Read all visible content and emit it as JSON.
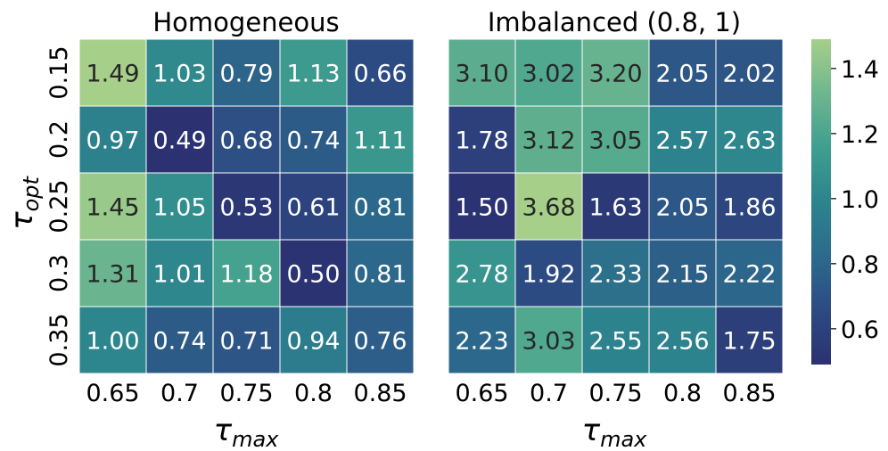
{
  "chart_data": {
    "type": "heatmap",
    "colormap": "crest",
    "colorbar": {
      "min": 0.49,
      "max": 1.49,
      "ticks": [
        "0.6",
        "0.8",
        "1.0",
        "1.2",
        "1.4"
      ],
      "tick_values": [
        0.6,
        0.8,
        1.0,
        1.2,
        1.4
      ]
    },
    "panels": [
      {
        "title": "Homogeneous",
        "xlabel_symbol": "τ",
        "xlabel_sub": "max",
        "ylabel_symbol": "τ",
        "ylabel_sub": "opt",
        "x_categories": [
          "0.65",
          "0.7",
          "0.75",
          "0.8",
          "0.85"
        ],
        "y_categories": [
          "0.15",
          "0.2",
          "0.25",
          "0.3",
          "0.35"
        ],
        "values": [
          [
            1.49,
            1.03,
            0.79,
            1.13,
            0.66
          ],
          [
            0.97,
            0.49,
            0.68,
            0.74,
            1.11
          ],
          [
            1.45,
            1.05,
            0.53,
            0.61,
            0.81
          ],
          [
            1.31,
            1.01,
            1.18,
            0.5,
            0.81
          ],
          [
            1.0,
            0.74,
            0.71,
            0.94,
            0.76
          ]
        ],
        "labels": [
          [
            "1.49",
            "1.03",
            "0.79",
            "1.13",
            "0.66"
          ],
          [
            "0.97",
            "0.49",
            "0.68",
            "0.74",
            "1.11"
          ],
          [
            "1.45",
            "1.05",
            "0.53",
            "0.61",
            "0.81"
          ],
          [
            "1.31",
            "1.01",
            "1.18",
            "0.50",
            "0.81"
          ],
          [
            "1.00",
            "0.74",
            "0.71",
            "0.94",
            "0.76"
          ]
        ]
      },
      {
        "title": "Imbalanced (0.8, 1)",
        "xlabel_symbol": "τ",
        "xlabel_sub": "max",
        "x_categories": [
          "0.65",
          "0.7",
          "0.75",
          "0.8",
          "0.85"
        ],
        "y_categories": [
          "0.15",
          "0.2",
          "0.25",
          "0.3",
          "0.35"
        ],
        "values": [
          [
            1.26,
            1.22,
            1.3,
            0.72,
            0.71
          ],
          [
            0.59,
            1.27,
            1.24,
            0.98,
            1.01
          ],
          [
            0.5,
            1.49,
            0.54,
            0.72,
            0.63
          ],
          [
            1.09,
            0.66,
            0.86,
            0.77,
            0.8
          ],
          [
            0.81,
            1.22,
            0.98,
            0.98,
            0.58
          ]
        ],
        "labels": [
          [
            "3.10",
            "3.02",
            "3.20",
            "2.05",
            "2.02"
          ],
          [
            "1.78",
            "3.12",
            "3.05",
            "2.57",
            "2.63"
          ],
          [
            "1.50",
            "3.68",
            "1.63",
            "2.05",
            "1.86"
          ],
          [
            "2.78",
            "1.92",
            "2.33",
            "2.15",
            "2.22"
          ],
          [
            "2.23",
            "3.03",
            "2.55",
            "2.56",
            "1.75"
          ]
        ]
      }
    ]
  }
}
